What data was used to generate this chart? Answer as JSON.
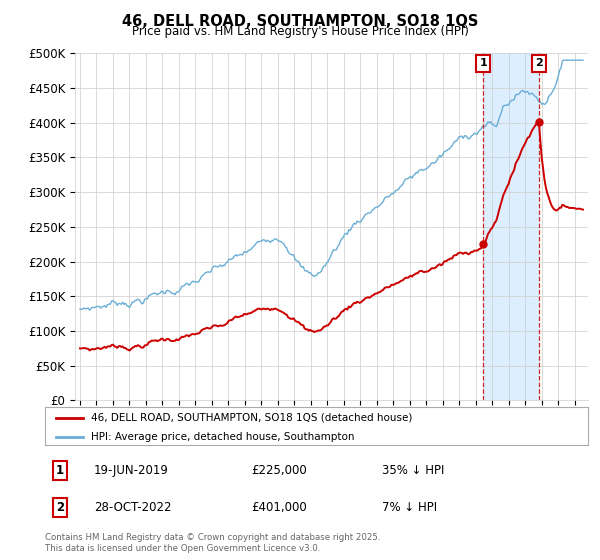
{
  "title": "46, DELL ROAD, SOUTHAMPTON, SO18 1QS",
  "subtitle": "Price paid vs. HM Land Registry's House Price Index (HPI)",
  "ylabel_ticks": [
    "£0",
    "£50K",
    "£100K",
    "£150K",
    "£200K",
    "£250K",
    "£300K",
    "£350K",
    "£400K",
    "£450K",
    "£500K"
  ],
  "ytick_values": [
    0,
    50000,
    100000,
    150000,
    200000,
    250000,
    300000,
    350000,
    400000,
    450000,
    500000
  ],
  "ylim": [
    0,
    500000
  ],
  "xlim_left": 1994.7,
  "xlim_right": 2025.8,
  "hpi_color": "#6aaed6",
  "price_color": "#cc0000",
  "shade_color": "#ddeeff",
  "sale1_year": 2019.46,
  "sale1_price": 225000,
  "sale2_year": 2022.82,
  "sale2_price": 401000,
  "annotation1": {
    "label": "1",
    "date": "19-JUN-2019",
    "price": "£225,000",
    "hpi": "35% ↓ HPI"
  },
  "annotation2": {
    "label": "2",
    "date": "28-OCT-2022",
    "price": "£401,000",
    "hpi": "7% ↓ HPI"
  },
  "legend_price_label": "46, DELL ROAD, SOUTHAMPTON, SO18 1QS (detached house)",
  "legend_hpi_label": "HPI: Average price, detached house, Southampton",
  "footer": "Contains HM Land Registry data © Crown copyright and database right 2025.\nThis data is licensed under the Open Government Licence v3.0.",
  "background_color": "#ffffff",
  "grid_color": "#cccccc"
}
